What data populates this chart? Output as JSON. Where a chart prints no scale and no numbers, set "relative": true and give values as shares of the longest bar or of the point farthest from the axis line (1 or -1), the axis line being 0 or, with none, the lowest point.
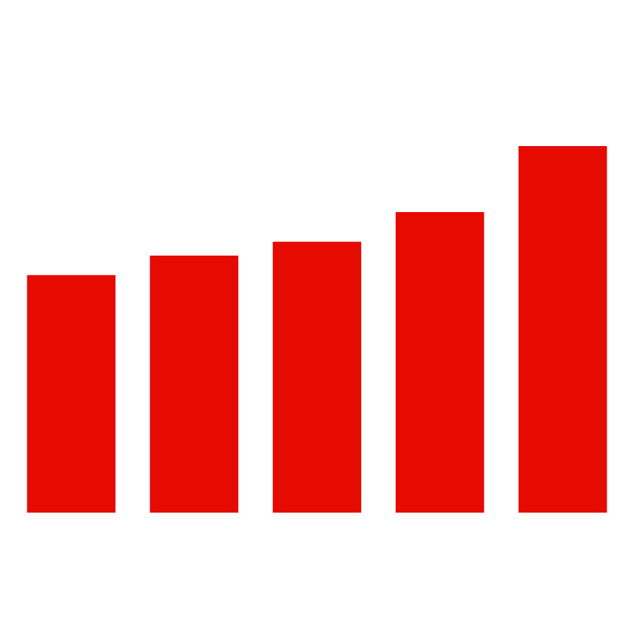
{
  "chart_data": {
    "type": "bar",
    "relative": true,
    "categories": [
      null,
      null,
      null,
      null,
      null
    ],
    "values": [
      0.648,
      0.701,
      0.739,
      0.82,
      1
    ],
    "color": "#e60b00"
  }
}
